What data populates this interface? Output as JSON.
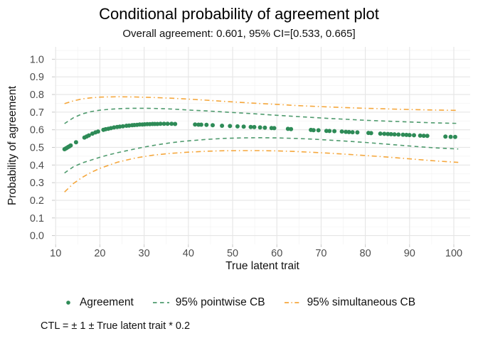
{
  "header": {
    "title": "Conditional probability of agreement plot",
    "subtitle": "Overall agreement: 0.601, 95% CI=[0.533, 0.665]"
  },
  "axes": {
    "x_label": "True latent trait",
    "y_label": "Probability of agreement"
  },
  "caption": "CTL = ± 1 ± True latent trait * 0.2",
  "colors": {
    "point_green": "#2E8B57",
    "line_green": "#4F9B6E",
    "line_orange": "#F5A73C",
    "grid_major": "#E5E5E5",
    "grid_minor": "#F3F3F3",
    "axis_text": "#4D4D4D",
    "tick_mark": "#C8C8C8",
    "text": "#111111"
  },
  "chart_data": {
    "type": "scatter",
    "title": "Conditional probability of agreement plot",
    "subtitle": "Overall agreement: 0.601, 95% CI=[0.533, 0.665]",
    "xlabel": "True latent trait",
    "ylabel": "Probability of agreement",
    "xlim": [
      9.8,
      103.7
    ],
    "ylim": [
      -0.05,
      1.07
    ],
    "x_ticks": [
      10,
      20,
      30,
      40,
      50,
      60,
      70,
      80,
      90,
      100
    ],
    "y_ticks": [
      0.0,
      0.1,
      0.2,
      0.3,
      0.4,
      0.5,
      0.6,
      0.7,
      0.8,
      0.9,
      1.0
    ],
    "x_minor": [
      15,
      25,
      35,
      45,
      55,
      65,
      75,
      85,
      95
    ],
    "y_minor": [
      0.05,
      0.15,
      0.25,
      0.35,
      0.45,
      0.55,
      0.65,
      0.75,
      0.85,
      0.95,
      1.05
    ],
    "grid": true,
    "legend_position": "bottom",
    "series": [
      {
        "name": "Agreement",
        "type": "points",
        "color": "#2E8B57",
        "points": [
          [
            12.0,
            0.49
          ],
          [
            12.3,
            0.494
          ],
          [
            12.5,
            0.497
          ],
          [
            12.8,
            0.502
          ],
          [
            13.1,
            0.506
          ],
          [
            13.4,
            0.511
          ],
          [
            14.6,
            0.529
          ],
          [
            16.5,
            0.556
          ],
          [
            17.0,
            0.562
          ],
          [
            17.5,
            0.568
          ],
          [
            18.3,
            0.578
          ],
          [
            19.0,
            0.585
          ],
          [
            19.6,
            0.59
          ],
          [
            20.8,
            0.6
          ],
          [
            21.3,
            0.603
          ],
          [
            21.9,
            0.606
          ],
          [
            22.5,
            0.609
          ],
          [
            23.2,
            0.613
          ],
          [
            23.9,
            0.616
          ],
          [
            24.5,
            0.618
          ],
          [
            25.2,
            0.62
          ],
          [
            26.0,
            0.623
          ],
          [
            26.6,
            0.624
          ],
          [
            27.3,
            0.626
          ],
          [
            27.8,
            0.627
          ],
          [
            28.4,
            0.628
          ],
          [
            29.0,
            0.63
          ],
          [
            29.6,
            0.63
          ],
          [
            30.1,
            0.631
          ],
          [
            30.7,
            0.632
          ],
          [
            31.3,
            0.632
          ],
          [
            31.9,
            0.633
          ],
          [
            32.4,
            0.633
          ],
          [
            33.0,
            0.633
          ],
          [
            33.7,
            0.634
          ],
          [
            34.5,
            0.634
          ],
          [
            35.3,
            0.634
          ],
          [
            36.2,
            0.634
          ],
          [
            37.0,
            0.633
          ],
          [
            41.5,
            0.63
          ],
          [
            42.3,
            0.629
          ],
          [
            42.9,
            0.629
          ],
          [
            44.1,
            0.628
          ],
          [
            45.5,
            0.626
          ],
          [
            47.6,
            0.623
          ],
          [
            49.4,
            0.621
          ],
          [
            51.1,
            0.619
          ],
          [
            52.5,
            0.618
          ],
          [
            54.1,
            0.616
          ],
          [
            54.9,
            0.615
          ],
          [
            56.2,
            0.613
          ],
          [
            57.3,
            0.612
          ],
          [
            58.8,
            0.61
          ],
          [
            59.4,
            0.609
          ],
          [
            62.5,
            0.605
          ],
          [
            63.2,
            0.604
          ],
          [
            67.7,
            0.599
          ],
          [
            68.3,
            0.598
          ],
          [
            69.4,
            0.597
          ],
          [
            71.2,
            0.594
          ],
          [
            71.9,
            0.593
          ],
          [
            73.0,
            0.592
          ],
          [
            74.7,
            0.59
          ],
          [
            75.6,
            0.588
          ],
          [
            76.3,
            0.587
          ],
          [
            77.1,
            0.586
          ],
          [
            78.2,
            0.585
          ],
          [
            80.7,
            0.582
          ],
          [
            81.3,
            0.581
          ],
          [
            83.4,
            0.578
          ],
          [
            84.3,
            0.577
          ],
          [
            85.1,
            0.576
          ],
          [
            85.8,
            0.575
          ],
          [
            86.6,
            0.574
          ],
          [
            87.5,
            0.573
          ],
          [
            88.5,
            0.572
          ],
          [
            89.3,
            0.571
          ],
          [
            90.0,
            0.57
          ],
          [
            91.0,
            0.569
          ],
          [
            92.4,
            0.567
          ],
          [
            93.2,
            0.566
          ],
          [
            94.0,
            0.565
          ],
          [
            98.1,
            0.561
          ],
          [
            99.3,
            0.56
          ],
          [
            100.3,
            0.559
          ]
        ]
      },
      {
        "name": "95% pointwise CB",
        "type": "band",
        "color": "#4F9B6E",
        "linetype": "dashed",
        "upper": [
          [
            12,
            0.635
          ],
          [
            14,
            0.668
          ],
          [
            16,
            0.69
          ],
          [
            18,
            0.703
          ],
          [
            20,
            0.711
          ],
          [
            22,
            0.716
          ],
          [
            24,
            0.719
          ],
          [
            26,
            0.721
          ],
          [
            28,
            0.722
          ],
          [
            30,
            0.722
          ],
          [
            32,
            0.721
          ],
          [
            34,
            0.72
          ],
          [
            36,
            0.718
          ],
          [
            38,
            0.715
          ],
          [
            40,
            0.712
          ],
          [
            44,
            0.707
          ],
          [
            48,
            0.701
          ],
          [
            52,
            0.695
          ],
          [
            56,
            0.689
          ],
          [
            60,
            0.682
          ],
          [
            64,
            0.676
          ],
          [
            68,
            0.67
          ],
          [
            72,
            0.664
          ],
          [
            76,
            0.659
          ],
          [
            80,
            0.654
          ],
          [
            84,
            0.65
          ],
          [
            88,
            0.646
          ],
          [
            92,
            0.642
          ],
          [
            96,
            0.639
          ],
          [
            101,
            0.636
          ]
        ],
        "lower": [
          [
            12,
            0.355
          ],
          [
            14,
            0.39
          ],
          [
            16,
            0.412
          ],
          [
            18,
            0.428
          ],
          [
            20,
            0.444
          ],
          [
            22,
            0.458
          ],
          [
            24,
            0.47
          ],
          [
            26,
            0.481
          ],
          [
            28,
            0.492
          ],
          [
            30,
            0.502
          ],
          [
            32,
            0.511
          ],
          [
            34,
            0.519
          ],
          [
            36,
            0.526
          ],
          [
            38,
            0.532
          ],
          [
            40,
            0.537
          ],
          [
            44,
            0.545
          ],
          [
            48,
            0.551
          ],
          [
            52,
            0.554
          ],
          [
            56,
            0.555
          ],
          [
            60,
            0.554
          ],
          [
            64,
            0.551
          ],
          [
            68,
            0.547
          ],
          [
            72,
            0.541
          ],
          [
            76,
            0.535
          ],
          [
            80,
            0.528
          ],
          [
            84,
            0.52
          ],
          [
            88,
            0.512
          ],
          [
            92,
            0.504
          ],
          [
            96,
            0.497
          ],
          [
            101,
            0.491
          ]
        ]
      },
      {
        "name": "95% simultaneous CB",
        "type": "band",
        "color": "#F5A73C",
        "linetype": "dashdot",
        "upper": [
          [
            12,
            0.748
          ],
          [
            14,
            0.764
          ],
          [
            16,
            0.775
          ],
          [
            18,
            0.781
          ],
          [
            20,
            0.785
          ],
          [
            24,
            0.787
          ],
          [
            28,
            0.786
          ],
          [
            32,
            0.783
          ],
          [
            36,
            0.779
          ],
          [
            40,
            0.774
          ],
          [
            44,
            0.768
          ],
          [
            48,
            0.761
          ],
          [
            52,
            0.755
          ],
          [
            56,
            0.749
          ],
          [
            60,
            0.744
          ],
          [
            64,
            0.738
          ],
          [
            68,
            0.733
          ],
          [
            72,
            0.729
          ],
          [
            76,
            0.725
          ],
          [
            80,
            0.722
          ],
          [
            84,
            0.719
          ],
          [
            88,
            0.716
          ],
          [
            92,
            0.714
          ],
          [
            96,
            0.712
          ],
          [
            101,
            0.71
          ]
        ],
        "lower": [
          [
            12,
            0.247
          ],
          [
            14,
            0.295
          ],
          [
            16,
            0.33
          ],
          [
            18,
            0.358
          ],
          [
            20,
            0.381
          ],
          [
            24,
            0.416
          ],
          [
            28,
            0.44
          ],
          [
            32,
            0.456
          ],
          [
            36,
            0.466
          ],
          [
            40,
            0.473
          ],
          [
            44,
            0.478
          ],
          [
            48,
            0.481
          ],
          [
            52,
            0.482
          ],
          [
            56,
            0.482
          ],
          [
            60,
            0.48
          ],
          [
            64,
            0.477
          ],
          [
            68,
            0.472
          ],
          [
            72,
            0.467
          ],
          [
            76,
            0.461
          ],
          [
            80,
            0.454
          ],
          [
            84,
            0.447
          ],
          [
            88,
            0.439
          ],
          [
            92,
            0.431
          ],
          [
            96,
            0.423
          ],
          [
            101,
            0.415
          ]
        ]
      }
    ]
  }
}
